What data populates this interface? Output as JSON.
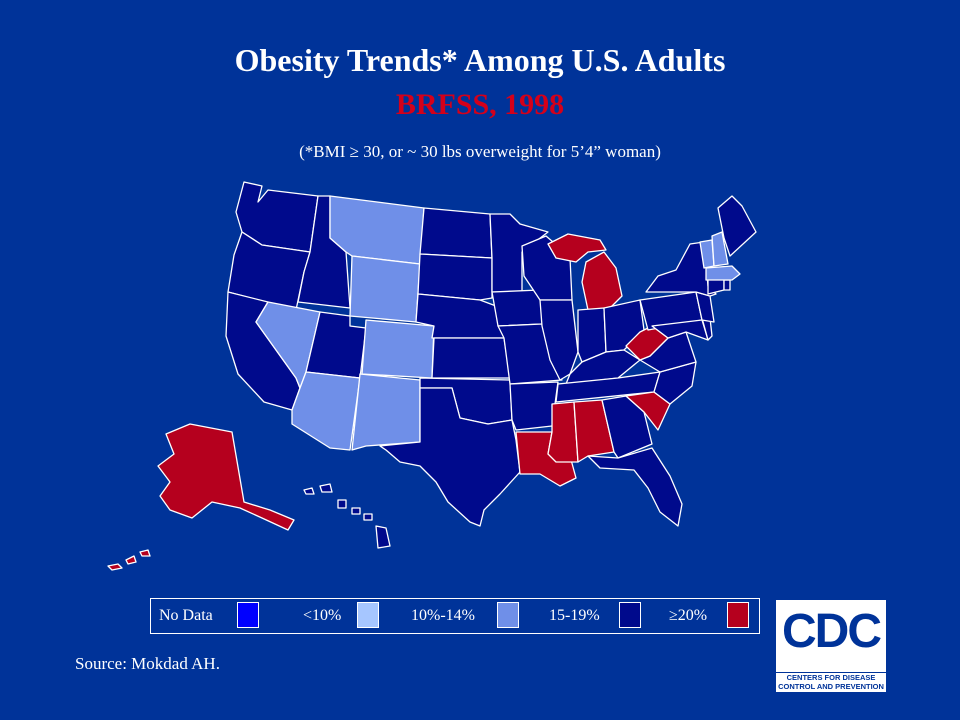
{
  "title": "Obesity Trends* Among U.S. Adults",
  "subtitle": "BRFSS, 1998",
  "note": "(*BMI ≥ 30, or ~ 30 lbs overweight for 5’4” woman)",
  "colors": {
    "background": "#003399",
    "no_data": "#0000ff",
    "lt10": "#a6c6ff",
    "10_14": "#6f8fe8",
    "15_19": "#000a8c",
    "ge20": "#b5001e",
    "subtitle": "#d4001a"
  },
  "legend": [
    {
      "label": "No Data",
      "key": "no_data"
    },
    {
      "label": "<10%",
      "key": "lt10"
    },
    {
      "label": "10%-14%",
      "key": "10_14"
    },
    {
      "label": "15-19%",
      "key": "15_19"
    },
    {
      "label": "≥20%",
      "key": "ge20"
    }
  ],
  "states": {
    "WA": "15_19",
    "OR": "15_19",
    "CA": "15_19",
    "ID": "15_19",
    "NV": "10_14",
    "MT": "10_14",
    "WY": "10_14",
    "UT": "15_19",
    "CO": "10_14",
    "AZ": "10_14",
    "NM": "10_14",
    "ND": "15_19",
    "SD": "15_19",
    "NE": "15_19",
    "KS": "15_19",
    "OK": "15_19",
    "TX": "15_19",
    "MN": "15_19",
    "IA": "15_19",
    "MO": "15_19",
    "AR": "15_19",
    "LA": "ge20",
    "WI": "15_19",
    "IL": "15_19",
    "MI": "ge20",
    "IN": "15_19",
    "OH": "15_19",
    "KY": "15_19",
    "TN": "15_19",
    "MS": "ge20",
    "AL": "ge20",
    "GA": "15_19",
    "FL": "15_19",
    "SC": "ge20",
    "NC": "15_19",
    "VA": "15_19",
    "WV": "ge20",
    "PA": "15_19",
    "NY": "15_19",
    "MD": "15_19",
    "DE": "15_19",
    "NJ": "15_19",
    "CT": "15_19",
    "RI": "15_19",
    "MA": "10_14",
    "VT": "10_14",
    "NH": "10_14",
    "ME": "15_19",
    "AK": "ge20",
    "HI": "15_19"
  },
  "source": "Source: Mokdad AH.",
  "logo": {
    "letters": "CDC",
    "line1": "CENTERS FOR DISEASE",
    "line2": "CONTROL AND PREVENTION"
  }
}
